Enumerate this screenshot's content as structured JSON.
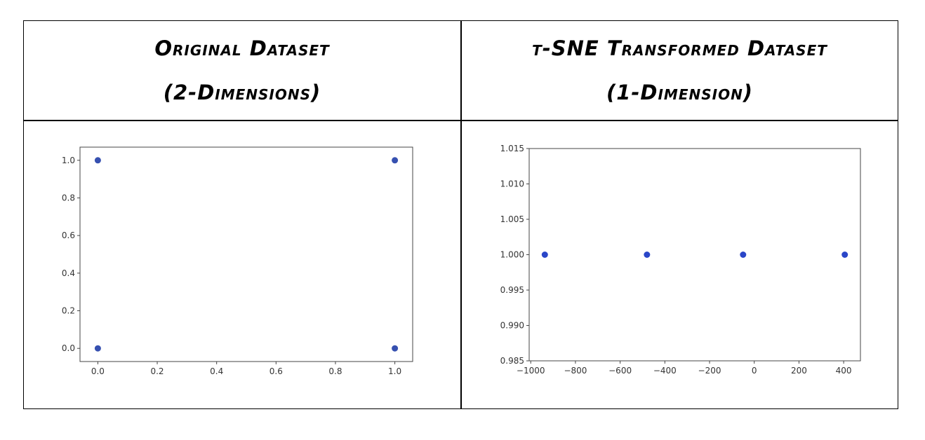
{
  "panels": {
    "left": {
      "title_line1": "Original Dataset",
      "title_line2": "(2-Dimensions)"
    },
    "right": {
      "title_line1": "t-SNE Transformed Dataset",
      "title_line2": "(1-Dimension)"
    }
  },
  "chart_data": [
    {
      "type": "scatter",
      "title": "",
      "xlabel": "",
      "ylabel": "",
      "x": [
        0,
        0,
        1,
        1
      ],
      "y": [
        0,
        1,
        0,
        1
      ],
      "xlim": [
        -0.06,
        1.06
      ],
      "ylim": [
        -0.07,
        1.07
      ],
      "xticks": [
        0.0,
        0.2,
        0.4,
        0.6,
        0.8,
        1.0
      ],
      "yticks": [
        0.0,
        0.2,
        0.4,
        0.6,
        0.8,
        1.0
      ],
      "xtick_labels": [
        "0.0",
        "0.2",
        "0.4",
        "0.6",
        "0.8",
        "1.0"
      ],
      "ytick_labels": [
        "0.0",
        "0.2",
        "0.4",
        "0.6",
        "0.8",
        "1.0"
      ],
      "grid": false,
      "marker_color": "#3650b0"
    },
    {
      "type": "scatter",
      "title": "",
      "xlabel": "",
      "ylabel": "",
      "x": [
        -937,
        -480,
        -50,
        405
      ],
      "y": [
        1.0,
        1.0,
        1.0,
        1.0
      ],
      "xlim": [
        -1007,
        475
      ],
      "ylim": [
        0.985,
        1.015
      ],
      "xticks": [
        -1000,
        -800,
        -600,
        -400,
        -200,
        0,
        200,
        400
      ],
      "yticks": [
        0.985,
        0.99,
        0.995,
        1.0,
        1.005,
        1.01,
        1.015
      ],
      "xtick_labels": [
        "−1000",
        "−800",
        "−600",
        "−400",
        "−200",
        "0",
        "200",
        "400"
      ],
      "ytick_labels": [
        "0.985",
        "0.990",
        "0.995",
        "1.000",
        "1.005",
        "1.010",
        "1.015"
      ],
      "grid": false,
      "marker_color": "#2a46c8"
    }
  ]
}
